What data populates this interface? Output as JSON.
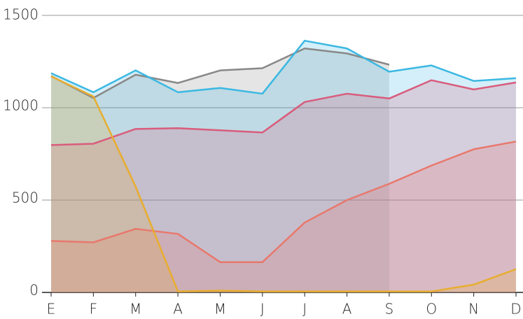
{
  "chart_data": {
    "type": "area",
    "categories": [
      "E",
      "F",
      "M",
      "A",
      "M",
      "J",
      "J",
      "A",
      "S",
      "O",
      "N",
      "D"
    ],
    "series": [
      {
        "color": "#888888",
        "values": [
          1172,
          1053,
          1179,
          1134,
          1202,
          1214,
          1321,
          1294,
          1233,
          null,
          null,
          null
        ]
      },
      {
        "color": "#3bb8e2",
        "values": [
          1187,
          1084,
          1202,
          1084,
          1107,
          1076,
          1363,
          1321,
          1195,
          1229,
          1145,
          1160
        ]
      },
      {
        "color": "#d95c7c",
        "values": [
          798,
          805,
          885,
          889,
          878,
          866,
          1031,
          1076,
          1050,
          1149,
          1099,
          1137
        ]
      },
      {
        "color": "#e8786c",
        "values": [
          279,
          271,
          344,
          317,
          164,
          164,
          378,
          500,
          588,
          687,
          775,
          817
        ]
      },
      {
        "color": "#e8ad2e",
        "values": [
          1170,
          1061,
          573,
          5,
          10,
          5,
          5,
          5,
          5,
          5,
          42,
          126
        ]
      }
    ],
    "ylim": [
      0,
      1500
    ],
    "yticks": [
      0,
      500,
      1000,
      1500
    ],
    "grid": true
  }
}
